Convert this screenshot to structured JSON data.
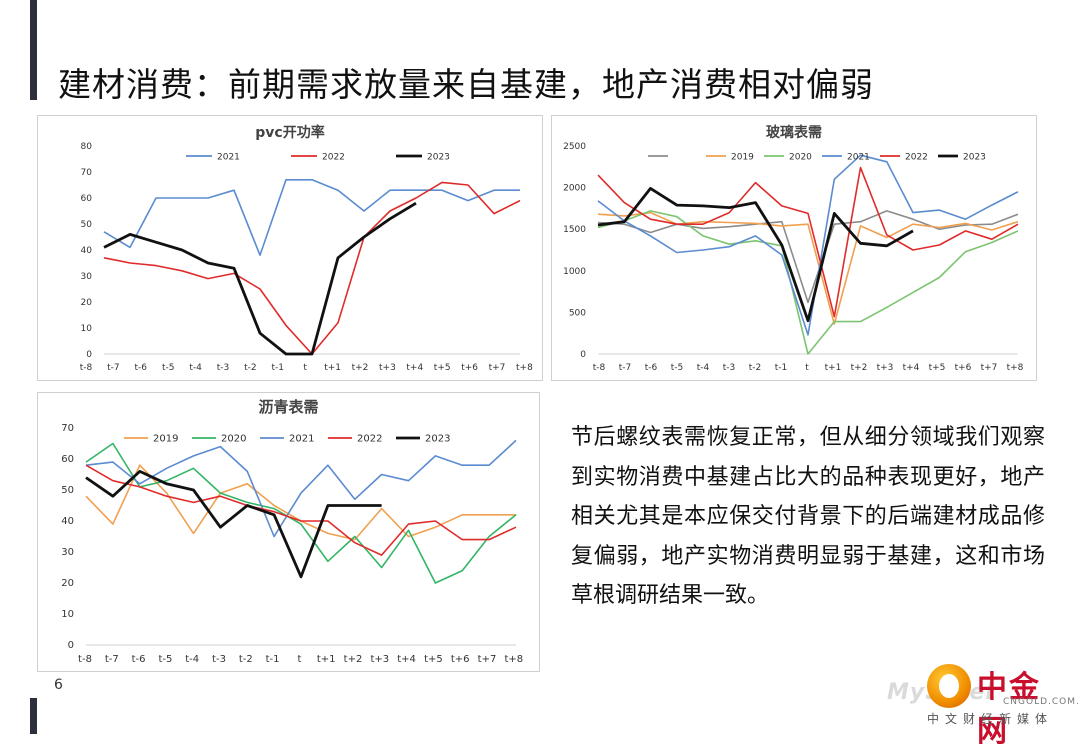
{
  "slide": {
    "title": "建材消费：前期需求放量来自基建，地产消费相对偏弱",
    "body": "节后螺纹表需恢复正常，但从细分领域我们观察到实物消费中基建占比大的品种表现更好，地产相关尤其是本应保交付背景下的后端建材成品修复偏弱，地产实物消费明显弱于基建，这和市场草根调研结果一致。",
    "page_number": "6"
  },
  "logo": {
    "name": "中金网",
    "domain": "CNGOLD.COM.CN",
    "slogan": "中文财经新媒体",
    "ghost_text": "MySteel"
  },
  "chart_data": [
    {
      "type": "line",
      "title": "pvc开功率",
      "categories": [
        "t-8",
        "t-7",
        "t-6",
        "t-5",
        "t-4",
        "t-3",
        "t-2",
        "t-1",
        "t",
        "t+1",
        "t+2",
        "t+3",
        "t+4",
        "t+5",
        "t+6",
        "t+7",
        "t+8"
      ],
      "ylim": [
        0,
        80
      ],
      "yticks": [
        0,
        10,
        20,
        30,
        40,
        50,
        60,
        70,
        80
      ],
      "series": [
        {
          "name": "2021",
          "color": "#5b8bd0",
          "width": 1.6,
          "values": [
            47,
            41,
            60,
            60,
            60,
            63,
            38,
            67,
            67,
            63,
            55,
            63,
            63,
            63,
            59,
            63,
            63
          ]
        },
        {
          "name": "2022",
          "color": "#e02b2b",
          "width": 1.6,
          "values": [
            37,
            35,
            34,
            32,
            29,
            31,
            25,
            11,
            0,
            12,
            45,
            55,
            60,
            66,
            65,
            54,
            59
          ]
        },
        {
          "name": "2023",
          "color": "#111111",
          "width": 2.8,
          "values": [
            41,
            46,
            43,
            40,
            35,
            33,
            8,
            0,
            0,
            37,
            45,
            52,
            58,
            null,
            null,
            null,
            null
          ]
        }
      ]
    },
    {
      "type": "line",
      "title": "玻璃表需",
      "categories": [
        "t-8",
        "t-7",
        "t-6",
        "t-5",
        "t-4",
        "t-3",
        "t-2",
        "t-1",
        "t",
        "t+1",
        "t+2",
        "t+3",
        "t+4",
        "t+5",
        "t+6",
        "t+7",
        "t+8"
      ],
      "ylim": [
        0,
        2500
      ],
      "yticks": [
        0,
        500,
        1000,
        1500,
        2000,
        2500
      ],
      "series": [
        {
          "name": "",
          "color": "#8c8c8c",
          "width": 1.6,
          "values": [
            1580,
            1560,
            1460,
            1560,
            1510,
            1530,
            1560,
            1590,
            620,
            1560,
            1590,
            1720,
            1620,
            1500,
            1550,
            1560,
            1680
          ]
        },
        {
          "name": "2019",
          "color": "#f0a050",
          "width": 1.6,
          "values": [
            1680,
            1660,
            1700,
            1560,
            1590,
            1580,
            1570,
            1540,
            1560,
            360,
            1540,
            1400,
            1560,
            1520,
            1570,
            1490,
            1590
          ]
        },
        {
          "name": "2020",
          "color": "#7cc470",
          "width": 1.6,
          "values": [
            1520,
            1600,
            1720,
            1650,
            1420,
            1320,
            1360,
            1300,
            0,
            390,
            390,
            560,
            740,
            920,
            1230,
            1340,
            1480
          ]
        },
        {
          "name": "2021",
          "color": "#5b8bd0",
          "width": 1.6,
          "values": [
            1840,
            1600,
            1420,
            1220,
            1250,
            1290,
            1420,
            1190,
            230,
            2100,
            2390,
            2310,
            1700,
            1730,
            1620,
            1790,
            1950
          ]
        },
        {
          "name": "2022",
          "color": "#e02b2b",
          "width": 1.6,
          "values": [
            2150,
            1820,
            1620,
            1560,
            1560,
            1700,
            2060,
            1780,
            1690,
            450,
            2240,
            1430,
            1250,
            1310,
            1480,
            1380,
            1560
          ]
        },
        {
          "name": "2023",
          "color": "#111111",
          "width": 2.8,
          "values": [
            1550,
            1590,
            1990,
            1790,
            1780,
            1760,
            1820,
            1310,
            400,
            1690,
            1330,
            1300,
            1480,
            null,
            null,
            null,
            null
          ]
        }
      ]
    },
    {
      "type": "line",
      "title": "沥青表需",
      "categories": [
        "t-8",
        "t-7",
        "t-6",
        "t-5",
        "t-4",
        "t-3",
        "t-2",
        "t-1",
        "t",
        "t+1",
        "t+2",
        "t+3",
        "t+4",
        "t+5",
        "t+6",
        "t+7",
        "t+8"
      ],
      "ylim": [
        0,
        70
      ],
      "yticks": [
        0,
        10,
        20,
        30,
        40,
        50,
        60,
        70
      ],
      "series": [
        {
          "name": "2019",
          "color": "#f0a050",
          "width": 1.6,
          "values": [
            48,
            39,
            58,
            49,
            36,
            49,
            52,
            45,
            40,
            36,
            34,
            44,
            35,
            38,
            42,
            42,
            42
          ]
        },
        {
          "name": "2020",
          "color": "#34b565",
          "width": 1.6,
          "values": [
            59,
            65,
            51,
            53,
            57,
            49,
            46,
            44,
            39,
            27,
            35,
            25,
            37,
            20,
            24,
            35,
            42
          ]
        },
        {
          "name": "2021",
          "color": "#5b8bd0",
          "width": 1.6,
          "values": [
            58,
            59,
            52,
            57,
            61,
            64,
            56,
            35,
            49,
            58,
            47,
            55,
            53,
            61,
            58,
            58,
            66
          ]
        },
        {
          "name": "2022",
          "color": "#e02b2b",
          "width": 1.6,
          "values": [
            58,
            53,
            51,
            48,
            46,
            48,
            45,
            43,
            40,
            40,
            33,
            29,
            39,
            40,
            34,
            34,
            38
          ]
        },
        {
          "name": "2023",
          "color": "#111111",
          "width": 2.8,
          "values": [
            54,
            48,
            56,
            52,
            50,
            38,
            45,
            42,
            22,
            45,
            45,
            45,
            null,
            null,
            null,
            null,
            null
          ]
        }
      ]
    }
  ]
}
